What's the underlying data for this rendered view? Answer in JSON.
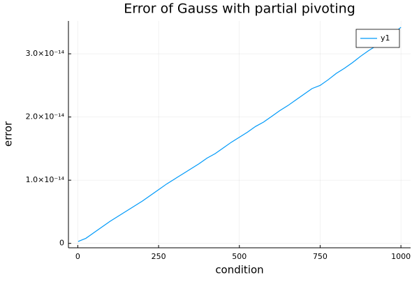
{
  "chart_data": {
    "type": "line",
    "title": "Error of Gauss with partial pivoting",
    "x_label": "condition",
    "y_label": "error",
    "x": [
      1,
      25,
      50,
      75,
      100,
      125,
      150,
      175,
      200,
      225,
      250,
      275,
      300,
      325,
      350,
      375,
      400,
      425,
      450,
      475,
      500,
      525,
      550,
      575,
      600,
      625,
      650,
      675,
      700,
      725,
      750,
      775,
      800,
      825,
      850,
      875,
      900,
      925,
      950,
      975,
      1000
    ],
    "series": [
      {
        "name": "y1",
        "color": "#009af9",
        "values": [
          3e-16,
          8e-16,
          1.7e-15,
          2.6e-15,
          3.5e-15,
          4.3e-15,
          5.1e-15,
          5.9e-15,
          6.7e-15,
          7.6e-15,
          8.5e-15,
          9.4e-15,
          1.02e-14,
          1.1e-14,
          1.18e-14,
          1.26e-14,
          1.35e-14,
          1.42e-14,
          1.51e-14,
          1.6e-14,
          1.68e-14,
          1.76e-14,
          1.85e-14,
          1.92e-14,
          2.01e-14,
          2.1e-14,
          2.18e-14,
          2.27e-14,
          2.36e-14,
          2.45e-14,
          2.5e-14,
          2.59e-14,
          2.69e-14,
          2.77e-14,
          2.86e-14,
          2.96e-14,
          3.05e-14,
          3.13e-14,
          3.22e-14,
          3.31e-14,
          3.42e-14
        ]
      }
    ],
    "xlim": [
      -29,
      1030
    ],
    "xticks": [
      0,
      250,
      500,
      750,
      1000
    ],
    "ylim": [
      -7e-16,
      3.52e-14
    ],
    "yticks": [
      0,
      {
        "value": 1e-14,
        "label": "1.0×10⁻¹⁴"
      },
      {
        "value": 2e-14,
        "label": "2.0×10⁻¹⁴"
      },
      {
        "value": 3e-14,
        "label": "3.0×10⁻¹⁴"
      }
    ],
    "grid": true,
    "legend": "top-right"
  }
}
